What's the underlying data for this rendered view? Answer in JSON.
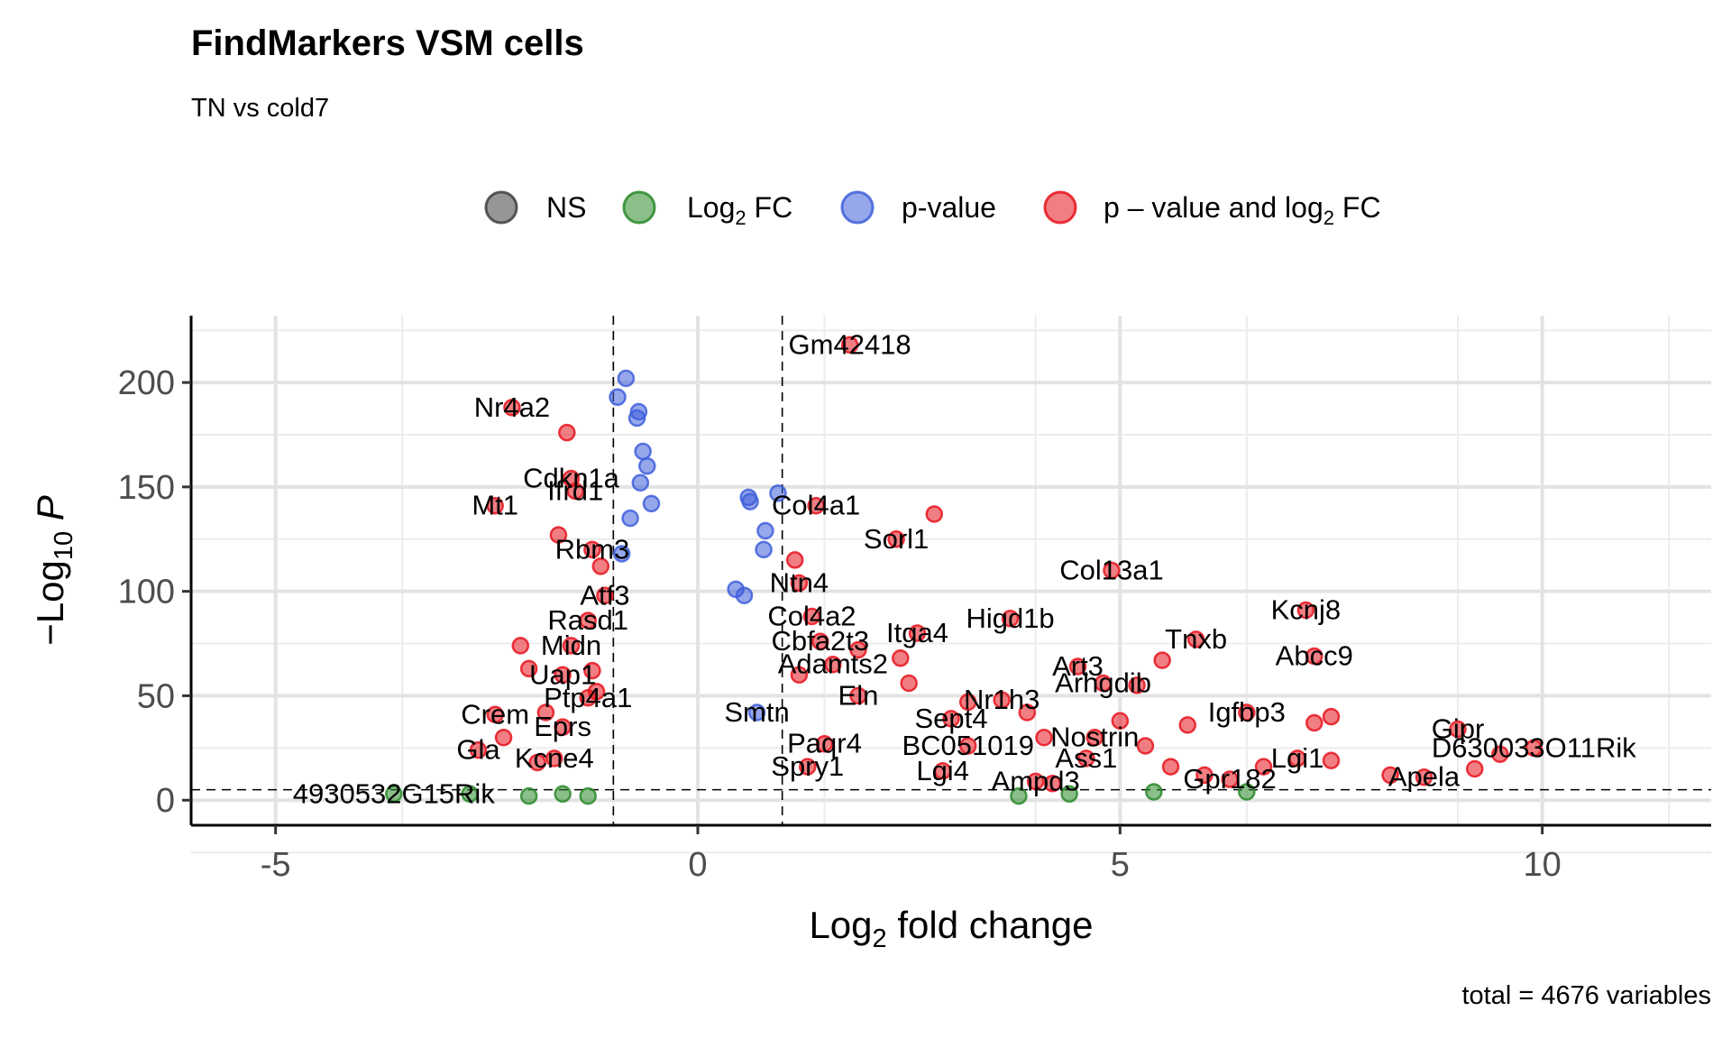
{
  "chart_data": {
    "type": "scatter",
    "title": "FindMarkers VSM cells",
    "subtitle": "TN vs cold7",
    "caption": "total = 4676 variables",
    "xlabel": "Log2 fold change",
    "xlabel_parts": {
      "base": "Log",
      "sub": "2",
      "rest": " fold change"
    },
    "ylabel": "-Log10 P",
    "ylabel_parts": {
      "prefix": "−Log",
      "sub": "10",
      "var": "P"
    },
    "xlim": [
      -6,
      12
    ],
    "ylim": [
      -12,
      232
    ],
    "x_ticks": [
      -5,
      0,
      5,
      10
    ],
    "x_tick_labels": [
      "-5",
      "0",
      "5",
      "10"
    ],
    "y_ticks": [
      0,
      50,
      100,
      150,
      200
    ],
    "y_tick_labels": [
      "0",
      "50",
      "100",
      "150",
      "200"
    ],
    "fc_cutoff": 1,
    "p_cutoff_line": 5,
    "legend": [
      {
        "key": "NS",
        "label": "NS",
        "color": "#404040"
      },
      {
        "key": "FC",
        "label_base": "Log",
        "label_sub": "2",
        "label_rest": " FC",
        "color": "#2a8a2a"
      },
      {
        "key": "P",
        "label": "p-value",
        "color": "#3f5fdb"
      },
      {
        "key": "FCP",
        "label_base": "p – value and log",
        "label_sub": "2",
        "label_rest": " FC",
        "color": "#e6141e"
      }
    ],
    "points": [
      {
        "gene": "Gm42418",
        "x": 1.8,
        "y": 218,
        "cat": "FCP"
      },
      {
        "gene": "Nr4a2",
        "x": -2.2,
        "y": 188,
        "cat": "FCP"
      },
      {
        "gene": "",
        "x": -1.55,
        "y": 176,
        "cat": "FCP"
      },
      {
        "gene": "Cdkn1a",
        "x": -1.5,
        "y": 154,
        "cat": "FCP"
      },
      {
        "gene": "Ifrd1",
        "x": -1.45,
        "y": 148,
        "cat": "FCP"
      },
      {
        "gene": "Mt1",
        "x": -2.4,
        "y": 141,
        "cat": "FCP"
      },
      {
        "gene": "Col4a1",
        "x": 1.4,
        "y": 141,
        "cat": "FCP"
      },
      {
        "gene": "",
        "x": 2.8,
        "y": 137,
        "cat": "FCP"
      },
      {
        "gene": "Sorl1",
        "x": 2.35,
        "y": 125,
        "cat": "FCP"
      },
      {
        "gene": "Rbm3",
        "x": -1.25,
        "y": 120,
        "cat": "FCP"
      },
      {
        "gene": "",
        "x": 1.15,
        "y": 115,
        "cat": "FCP"
      },
      {
        "gene": "Col13a1",
        "x": 4.9,
        "y": 110,
        "cat": "FCP"
      },
      {
        "gene": "Ntn4",
        "x": 1.2,
        "y": 104,
        "cat": "FCP"
      },
      {
        "gene": "Atf3",
        "x": -1.1,
        "y": 98,
        "cat": "FCP"
      },
      {
        "gene": "Kcnj8",
        "x": 7.2,
        "y": 91,
        "cat": "FCP"
      },
      {
        "gene": "Col4a2",
        "x": 1.35,
        "y": 88,
        "cat": "FCP"
      },
      {
        "gene": "Rasd1",
        "x": -1.3,
        "y": 86,
        "cat": "FCP"
      },
      {
        "gene": "Higd1b",
        "x": 3.7,
        "y": 87,
        "cat": "FCP"
      },
      {
        "gene": "Itga4",
        "x": 2.6,
        "y": 80,
        "cat": "FCP"
      },
      {
        "gene": "Tnxb",
        "x": 5.9,
        "y": 77,
        "cat": "FCP"
      },
      {
        "gene": "Cbfa2t3",
        "x": 1.45,
        "y": 76,
        "cat": "FCP"
      },
      {
        "gene": "Midn",
        "x": -1.5,
        "y": 74,
        "cat": "FCP"
      },
      {
        "gene": "",
        "x": -2.1,
        "y": 74,
        "cat": "FCP"
      },
      {
        "gene": "Abcc9",
        "x": 7.3,
        "y": 69,
        "cat": "FCP"
      },
      {
        "gene": "",
        "x": 5.5,
        "y": 67,
        "cat": "FCP"
      },
      {
        "gene": "Adamts2",
        "x": 1.6,
        "y": 65,
        "cat": "FCP"
      },
      {
        "gene": "Art3",
        "x": 4.5,
        "y": 64,
        "cat": "FCP"
      },
      {
        "gene": "Uap1",
        "x": -1.6,
        "y": 60,
        "cat": "FCP"
      },
      {
        "gene": "",
        "x": -2.0,
        "y": 63,
        "cat": "FCP"
      },
      {
        "gene": "Arhgdib",
        "x": 4.8,
        "y": 56,
        "cat": "FCP"
      },
      {
        "gene": "",
        "x": 5.2,
        "y": 55,
        "cat": "FCP"
      },
      {
        "gene": "Nr1h3",
        "x": 3.6,
        "y": 48,
        "cat": "FCP"
      },
      {
        "gene": "Eln",
        "x": 1.9,
        "y": 50,
        "cat": "FCP"
      },
      {
        "gene": "Ptp4a1",
        "x": -1.3,
        "y": 49,
        "cat": "FCP"
      },
      {
        "gene": "Igfbp3",
        "x": 6.5,
        "y": 42,
        "cat": "FCP"
      },
      {
        "gene": "",
        "x": 7.5,
        "y": 40,
        "cat": "FCP"
      },
      {
        "gene": "",
        "x": 7.3,
        "y": 37,
        "cat": "FCP"
      },
      {
        "gene": "",
        "x": 5.8,
        "y": 36,
        "cat": "FCP"
      },
      {
        "gene": "Sept4",
        "x": 3.0,
        "y": 39,
        "cat": "FCP"
      },
      {
        "gene": "Gipr",
        "x": 9.0,
        "y": 34,
        "cat": "FCP"
      },
      {
        "gene": "Crem",
        "x": -2.4,
        "y": 41,
        "cat": "FCP"
      },
      {
        "gene": "Eprs",
        "x": -1.6,
        "y": 35,
        "cat": "FCP"
      },
      {
        "gene": "Nostrin",
        "x": 4.7,
        "y": 30,
        "cat": "FCP"
      },
      {
        "gene": "BC051019",
        "x": 3.2,
        "y": 26,
        "cat": "FCP"
      },
      {
        "gene": "Paqr4",
        "x": 1.5,
        "y": 27,
        "cat": "FCP"
      },
      {
        "gene": "D630033O11Rik",
        "x": 9.9,
        "y": 25,
        "cat": "FCP"
      },
      {
        "gene": "",
        "x": 9.5,
        "y": 22,
        "cat": "FCP"
      },
      {
        "gene": "Gla",
        "x": -2.6,
        "y": 24,
        "cat": "FCP"
      },
      {
        "gene": "Kcne4",
        "x": -1.7,
        "y": 20,
        "cat": "FCP"
      },
      {
        "gene": "Lgi1",
        "x": 7.1,
        "y": 20,
        "cat": "FCP"
      },
      {
        "gene": "",
        "x": 7.5,
        "y": 19,
        "cat": "FCP"
      },
      {
        "gene": "Ass1",
        "x": 4.6,
        "y": 20,
        "cat": "FCP"
      },
      {
        "gene": "",
        "x": 5.6,
        "y": 16,
        "cat": "FCP"
      },
      {
        "gene": "",
        "x": 6.7,
        "y": 16,
        "cat": "FCP"
      },
      {
        "gene": "Spry1",
        "x": 1.3,
        "y": 16,
        "cat": "FCP"
      },
      {
        "gene": "Lgi4",
        "x": 2.9,
        "y": 14,
        "cat": "FCP"
      },
      {
        "gene": "",
        "x": 9.2,
        "y": 15,
        "cat": "FCP"
      },
      {
        "gene": "Apela",
        "x": 8.6,
        "y": 11,
        "cat": "FCP"
      },
      {
        "gene": "",
        "x": 8.2,
        "y": 12,
        "cat": "FCP"
      },
      {
        "gene": "Gpr182",
        "x": 6.3,
        "y": 10,
        "cat": "FCP"
      },
      {
        "gene": "",
        "x": 6.0,
        "y": 12,
        "cat": "FCP"
      },
      {
        "gene": "Ampd3",
        "x": 4.0,
        "y": 9,
        "cat": "FCP"
      },
      {
        "gene": "",
        "x": 4.2,
        "y": 8,
        "cat": "FCP"
      },
      {
        "gene": "",
        "x": -1.2,
        "y": 52,
        "cat": "FCP"
      },
      {
        "gene": "",
        "x": -1.8,
        "y": 42,
        "cat": "FCP"
      },
      {
        "gene": "",
        "x": -2.3,
        "y": 30,
        "cat": "FCP"
      },
      {
        "gene": "",
        "x": -1.9,
        "y": 18,
        "cat": "FCP"
      },
      {
        "gene": "",
        "x": -1.25,
        "y": 62,
        "cat": "FCP"
      },
      {
        "gene": "",
        "x": -1.15,
        "y": 112,
        "cat": "FCP"
      },
      {
        "gene": "",
        "x": -1.65,
        "y": 127,
        "cat": "FCP"
      },
      {
        "gene": "",
        "x": 1.9,
        "y": 72,
        "cat": "FCP"
      },
      {
        "gene": "",
        "x": 2.4,
        "y": 68,
        "cat": "FCP"
      },
      {
        "gene": "",
        "x": 2.5,
        "y": 56,
        "cat": "FCP"
      },
      {
        "gene": "",
        "x": 3.2,
        "y": 47,
        "cat": "FCP"
      },
      {
        "gene": "",
        "x": 3.9,
        "y": 42,
        "cat": "FCP"
      },
      {
        "gene": "",
        "x": 4.1,
        "y": 30,
        "cat": "FCP"
      },
      {
        "gene": "",
        "x": 5.3,
        "y": 26,
        "cat": "FCP"
      },
      {
        "gene": "",
        "x": 5.0,
        "y": 38,
        "cat": "FCP"
      },
      {
        "gene": "",
        "x": 1.2,
        "y": 60,
        "cat": "FCP"
      },
      {
        "gene": "4930532G15Rik",
        "x": -3.6,
        "y": 3,
        "cat": "FC"
      },
      {
        "gene": "",
        "x": -2.7,
        "y": 3,
        "cat": "FC"
      },
      {
        "gene": "",
        "x": -2.0,
        "y": 2,
        "cat": "FC"
      },
      {
        "gene": "",
        "x": -1.6,
        "y": 3,
        "cat": "FC"
      },
      {
        "gene": "",
        "x": -1.3,
        "y": 2,
        "cat": "FC"
      },
      {
        "gene": "",
        "x": 5.4,
        "y": 4,
        "cat": "FC"
      },
      {
        "gene": "",
        "x": 6.5,
        "y": 4,
        "cat": "FC"
      },
      {
        "gene": "",
        "x": 4.4,
        "y": 3,
        "cat": "FC"
      },
      {
        "gene": "",
        "x": 3.8,
        "y": 2,
        "cat": "FC"
      },
      {
        "gene": "Smtn",
        "x": 0.7,
        "y": 42,
        "cat": "P"
      },
      {
        "gene": "",
        "x": -0.85,
        "y": 202,
        "cat": "P"
      },
      {
        "gene": "",
        "x": -0.95,
        "y": 193,
        "cat": "P"
      },
      {
        "gene": "",
        "x": -0.7,
        "y": 186,
        "cat": "P"
      },
      {
        "gene": "",
        "x": -0.72,
        "y": 183,
        "cat": "P"
      },
      {
        "gene": "",
        "x": -0.65,
        "y": 167,
        "cat": "P"
      },
      {
        "gene": "",
        "x": -0.6,
        "y": 160,
        "cat": "P"
      },
      {
        "gene": "",
        "x": -0.68,
        "y": 152,
        "cat": "P"
      },
      {
        "gene": "",
        "x": -0.55,
        "y": 142,
        "cat": "P"
      },
      {
        "gene": "",
        "x": -0.8,
        "y": 135,
        "cat": "P"
      },
      {
        "gene": "",
        "x": -0.9,
        "y": 118,
        "cat": "P"
      },
      {
        "gene": "",
        "x": 0.95,
        "y": 147,
        "cat": "P"
      },
      {
        "gene": "",
        "x": 0.6,
        "y": 145,
        "cat": "P"
      },
      {
        "gene": "",
        "x": 0.62,
        "y": 143,
        "cat": "P"
      },
      {
        "gene": "",
        "x": 0.8,
        "y": 129,
        "cat": "P"
      },
      {
        "gene": "",
        "x": 0.78,
        "y": 120,
        "cat": "P"
      },
      {
        "gene": "",
        "x": 0.45,
        "y": 101,
        "cat": "P"
      },
      {
        "gene": "",
        "x": 0.55,
        "y": 98,
        "cat": "P"
      }
    ]
  }
}
